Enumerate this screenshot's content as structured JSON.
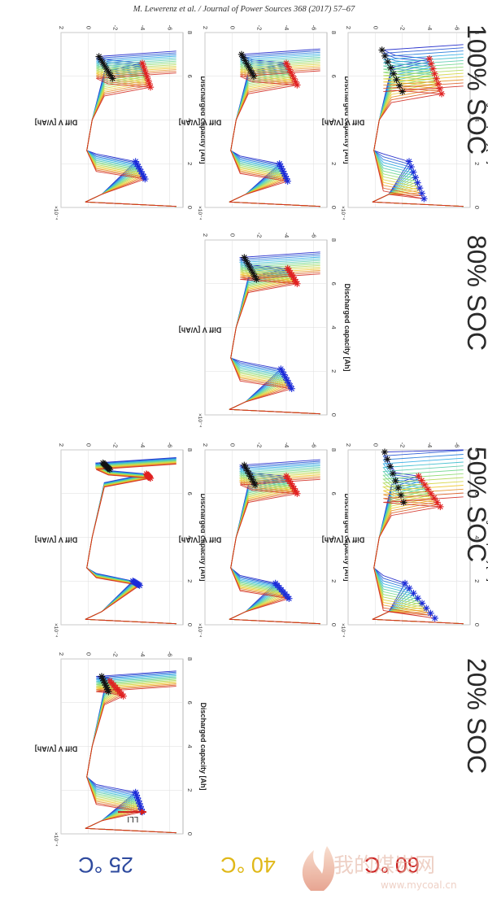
{
  "header": {
    "citation": "M. Lewerenz et al. / Journal of Power Sources 368 (2017) 57–67"
  },
  "figure": {
    "column_labels": [
      "20% SOC",
      "50% SOC",
      "80% SOC",
      "100% SOC"
    ],
    "row_labels": [
      {
        "text": "25 °C",
        "color": "#2e4a9e"
      },
      {
        "text": "40 °C",
        "color": "#e0b818"
      },
      {
        "text": "60 °C",
        "color": "#cc2222"
      }
    ],
    "annotation_lli": "LLI",
    "watermark": {
      "text": "我的煤炭网",
      "url": "www.mycoal.cn"
    }
  },
  "chart_data": {
    "type": "line",
    "xlabel": "Discharged capacity [Ah]",
    "ylabel": "Diff V [V/Ah]",
    "y_multiplier": "×10⁻⁴",
    "xlim": [
      0,
      8
    ],
    "ylim": [
      -7,
      2
    ],
    "xticks": [
      0,
      2,
      4,
      6,
      8
    ],
    "yticks": [
      2,
      0,
      -2,
      -4,
      -6
    ],
    "grid": true,
    "color_scale": "blue → cyan → yellow → red (aging progression)",
    "markers": [
      {
        "symbol": "*",
        "color": "blue",
        "meaning": "first minimum (~1–2 Ah)"
      },
      {
        "symbol": "*",
        "color": "red",
        "meaning": "second minimum (~5–7 Ah)"
      },
      {
        "symbol": "*",
        "color": "black",
        "meaning": "end of plateau (~6–7.5 Ah)"
      }
    ],
    "panels": [
      {
        "soc": "20% SOC",
        "temperature": "25 °C",
        "first_min": {
          "x": [
            1.0,
            1.9
          ],
          "y": [
            -3.5,
            -4.0
          ]
        },
        "second_min": {
          "x": [
            6.3,
            7.0
          ],
          "y": [
            -1.6,
            -2.6
          ]
        },
        "end_marker": {
          "x": [
            6.5,
            7.2
          ],
          "y": [
            -1.0,
            -1.5
          ]
        }
      },
      {
        "soc": "50% SOC",
        "temperature": "25 °C",
        "first_min": {
          "x": [
            1.8,
            2.0
          ],
          "y": [
            -3.3,
            -3.8
          ]
        },
        "second_min": {
          "x": [
            6.7,
            6.9
          ],
          "y": [
            -4.3,
            -4.6
          ]
        },
        "end_marker": {
          "x": [
            7.1,
            7.4
          ],
          "y": [
            -1.1,
            -1.6
          ]
        }
      },
      {
        "soc": "50% SOC",
        "temperature": "40 °C",
        "first_min": {
          "x": [
            1.2,
            1.9
          ],
          "y": [
            -3.2,
            -4.2
          ]
        },
        "second_min": {
          "x": [
            6.0,
            6.8
          ],
          "y": [
            -4.0,
            -4.8
          ]
        },
        "end_marker": {
          "x": [
            6.4,
            7.3
          ],
          "y": [
            -0.9,
            -1.7
          ]
        }
      },
      {
        "soc": "50% SOC",
        "temperature": "60 °C",
        "first_min": {
          "x": [
            0.3,
            1.9
          ],
          "y": [
            -2.2,
            -4.4
          ]
        },
        "second_min": {
          "x": [
            5.4,
            6.8
          ],
          "y": [
            -3.2,
            -4.8
          ]
        },
        "end_marker": {
          "x": [
            5.6,
            7.9
          ],
          "y": [
            -0.7,
            -2.1
          ]
        }
      },
      {
        "soc": "80% SOC",
        "temperature": "40 °C",
        "first_min": {
          "x": [
            1.2,
            2.1
          ],
          "y": [
            -3.6,
            -4.4
          ]
        },
        "second_min": {
          "x": [
            6.0,
            6.7
          ],
          "y": [
            -4.1,
            -4.8
          ]
        },
        "end_marker": {
          "x": [
            6.2,
            7.2
          ],
          "y": [
            -0.9,
            -1.8
          ]
        }
      },
      {
        "soc": "100% SOC",
        "temperature": "25 °C",
        "first_min": {
          "x": [
            1.3,
            2.1
          ],
          "y": [
            -3.5,
            -4.2
          ]
        },
        "second_min": {
          "x": [
            5.5,
            6.6
          ],
          "y": [
            -4.0,
            -4.6
          ]
        },
        "end_marker": {
          "x": [
            5.9,
            6.9
          ],
          "y": [
            -0.8,
            -1.8
          ]
        }
      },
      {
        "soc": "100% SOC",
        "temperature": "40 °C",
        "first_min": {
          "x": [
            1.2,
            2.0
          ],
          "y": [
            -3.5,
            -4.1
          ]
        },
        "second_min": {
          "x": [
            5.6,
            6.6
          ],
          "y": [
            -4.0,
            -4.8
          ]
        },
        "end_marker": {
          "x": [
            6.0,
            7.0
          ],
          "y": [
            -0.7,
            -1.6
          ]
        }
      },
      {
        "soc": "100% SOC",
        "temperature": "60 °C",
        "first_min": {
          "x": [
            0.4,
            2.1
          ],
          "y": [
            -2.5,
            -3.6
          ]
        },
        "second_min": {
          "x": [
            5.2,
            6.8
          ],
          "y": [
            -4.0,
            -4.9
          ]
        },
        "end_marker": {
          "x": [
            5.3,
            7.2
          ],
          "y": [
            -0.5,
            -2.0
          ]
        }
      }
    ]
  }
}
